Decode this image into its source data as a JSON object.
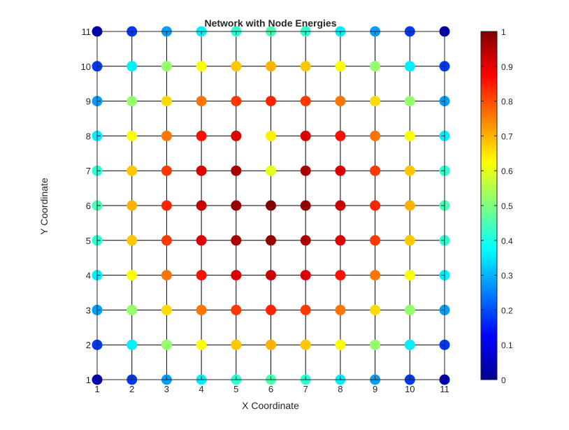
{
  "chart_data": {
    "type": "scatter",
    "title": "Network with Node Energies",
    "xlabel": "X Coordinate",
    "ylabel": "Y Coordinate",
    "xlim": [
      1,
      11
    ],
    "ylim": [
      1,
      11
    ],
    "xticks": [
      1,
      2,
      3,
      4,
      5,
      6,
      7,
      8,
      9,
      10,
      11
    ],
    "yticks": [
      1,
      2,
      3,
      4,
      5,
      6,
      7,
      8,
      9,
      10,
      11
    ],
    "colormap": "jet",
    "colorbar": {
      "range": [
        0,
        1
      ],
      "ticks": [
        0,
        0.1,
        0.2,
        0.3,
        0.4,
        0.5,
        0.6,
        0.7,
        0.8,
        0.9,
        1
      ],
      "tick_labels": [
        "0",
        "0.1",
        "0.2",
        "0.3",
        "0.4",
        "0.5",
        "0.6",
        "0.7",
        "0.8",
        "0.9",
        "1"
      ],
      "location": "right"
    },
    "grid_edges": "4-neighbor lattice on integer nodes 1..11 (missing horizontal edge between x=5 and x=6 at y=8)",
    "energy_grid_note": "rows listed from y=1 (first) to y=11 (last); each row lists x=1..11",
    "energy": [
      [
        0.05,
        0.18,
        0.28,
        0.36,
        0.42,
        0.45,
        0.42,
        0.36,
        0.28,
        0.18,
        0.05
      ],
      [
        0.18,
        0.36,
        0.52,
        0.62,
        0.68,
        0.7,
        0.68,
        0.62,
        0.52,
        0.36,
        0.18
      ],
      [
        0.28,
        0.52,
        0.66,
        0.76,
        0.82,
        0.84,
        0.82,
        0.76,
        0.66,
        0.52,
        0.28
      ],
      [
        0.36,
        0.62,
        0.76,
        0.86,
        0.91,
        0.93,
        0.91,
        0.86,
        0.76,
        0.62,
        0.36
      ],
      [
        0.42,
        0.68,
        0.82,
        0.91,
        0.96,
        0.98,
        0.96,
        0.91,
        0.82,
        0.68,
        0.42
      ],
      [
        0.45,
        0.7,
        0.84,
        0.93,
        0.98,
        1.0,
        0.98,
        0.93,
        0.84,
        0.7,
        0.45
      ],
      [
        0.42,
        0.68,
        0.82,
        0.91,
        0.96,
        0.6,
        0.96,
        0.91,
        0.82,
        0.68,
        0.42
      ],
      [
        0.36,
        0.62,
        0.76,
        0.86,
        0.91,
        0.64,
        0.91,
        0.86,
        0.76,
        0.62,
        0.36
      ],
      [
        0.28,
        0.52,
        0.66,
        0.76,
        0.82,
        0.84,
        0.82,
        0.76,
        0.66,
        0.52,
        0.28
      ],
      [
        0.18,
        0.36,
        0.52,
        0.62,
        0.68,
        0.7,
        0.68,
        0.62,
        0.52,
        0.36,
        0.18
      ],
      [
        0.05,
        0.18,
        0.28,
        0.36,
        0.42,
        0.45,
        0.42,
        0.36,
        0.28,
        0.18,
        0.05
      ]
    ]
  }
}
